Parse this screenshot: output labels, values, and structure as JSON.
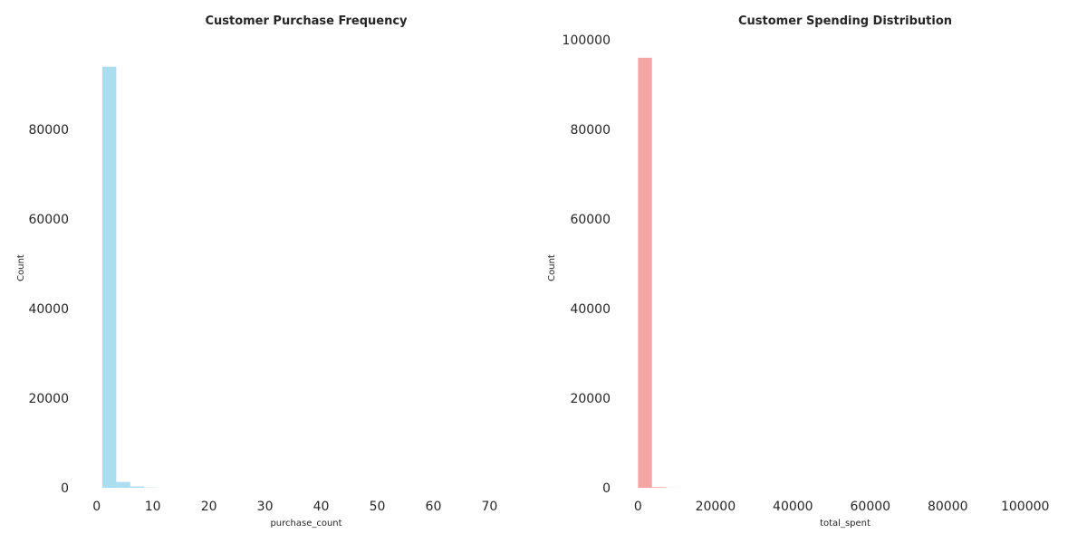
{
  "chart_data": [
    {
      "type": "bar",
      "subtype": "histogram",
      "title": "Customer Purchase Frequency",
      "xlabel": "purchase_count",
      "ylabel": "Count",
      "xlim": [
        -3.5,
        78
      ],
      "ylim": [
        0,
        100000
      ],
      "xticks": [
        0,
        10,
        20,
        30,
        40,
        50,
        60,
        70
      ],
      "yticks": [
        0,
        20000,
        40000,
        60000,
        80000
      ],
      "bin_width": 2.5,
      "bins": [
        {
          "x0": 1.0,
          "x1": 3.5,
          "count": 94000
        },
        {
          "x0": 3.5,
          "x1": 6.0,
          "count": 1300
        },
        {
          "x0": 6.0,
          "x1": 8.5,
          "count": 300
        },
        {
          "x0": 8.5,
          "x1": 11.0,
          "count": 50
        }
      ],
      "color": "#87ceeb",
      "grid": false
    },
    {
      "type": "bar",
      "subtype": "histogram",
      "title": "Customer Spending Distribution",
      "xlabel": "total_spent",
      "ylabel": "Count",
      "xlim": [
        -5000,
        112000
      ],
      "ylim": [
        0,
        100000
      ],
      "xticks": [
        0,
        20000,
        40000,
        60000,
        80000,
        100000
      ],
      "yticks": [
        0,
        20000,
        40000,
        60000,
        80000,
        100000
      ],
      "bin_width": 3600,
      "bins": [
        {
          "x0": 0,
          "x1": 3600,
          "count": 96000
        },
        {
          "x0": 3600,
          "x1": 7200,
          "count": 150
        },
        {
          "x0": 7200,
          "x1": 10800,
          "count": 20
        }
      ],
      "color": "#f08080",
      "grid": false
    }
  ]
}
